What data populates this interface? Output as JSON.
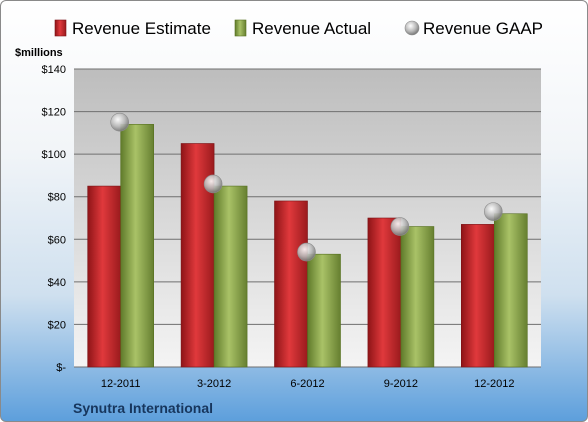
{
  "chart_data": {
    "type": "bar",
    "title": "",
    "company": "Synutra International",
    "units_label": "$millions",
    "categories": [
      "12-2011",
      "3-2012",
      "6-2012",
      "9-2012",
      "12-2012"
    ],
    "series": [
      {
        "name": "Revenue Estimate",
        "kind": "bar",
        "color": "#c0262b",
        "values": [
          85,
          105,
          78,
          70,
          67
        ]
      },
      {
        "name": "Revenue Actual",
        "kind": "bar",
        "color": "#8aa24a",
        "values": [
          114,
          85,
          53,
          66,
          72
        ]
      },
      {
        "name": "Revenue GAAP",
        "kind": "marker",
        "color": "#b0b0b0",
        "values": [
          115,
          86,
          54,
          66,
          73
        ]
      }
    ],
    "ylim": [
      0,
      140
    ],
    "yticks": [
      0,
      20,
      40,
      60,
      80,
      100,
      120,
      140
    ],
    "ytick_labels": [
      "$-",
      "$20",
      "$40",
      "$60",
      "$80",
      "$100",
      "$120",
      "$140"
    ],
    "grid": true,
    "legend_position": "top"
  }
}
